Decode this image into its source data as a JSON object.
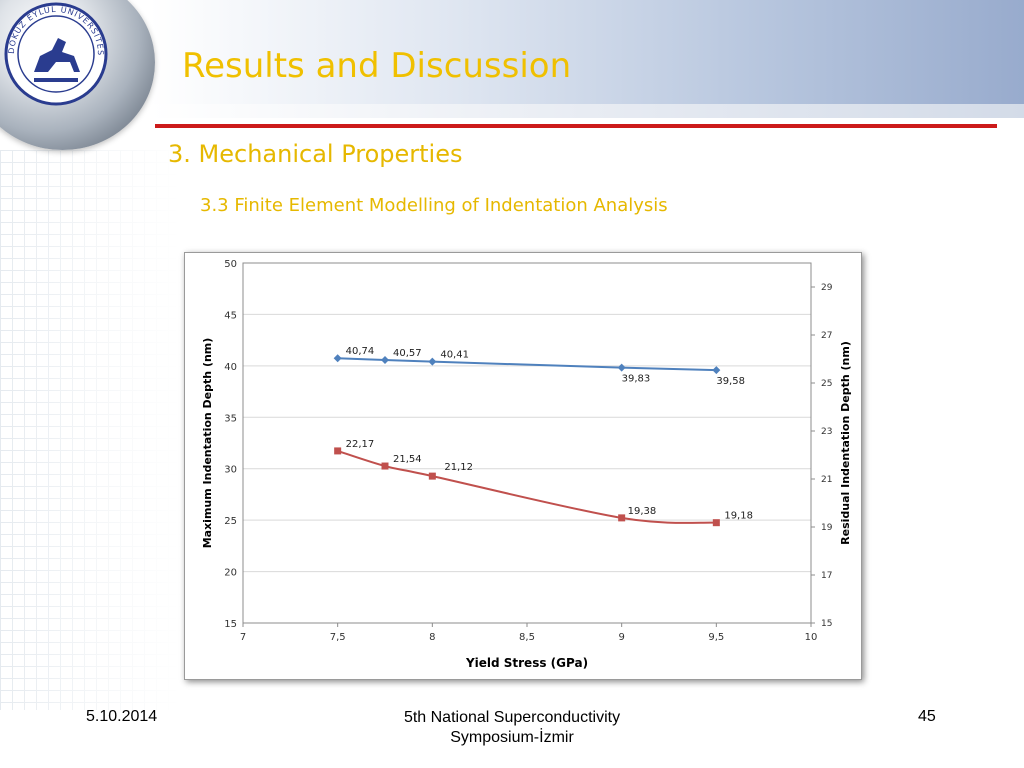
{
  "slide": {
    "title": "Results and Discussion",
    "subtitle1": "3. Mechanical Properties",
    "subtitle2": "3.3 Finite Element Modelling of Indentation Analysis",
    "footer_date": "5.10.2014",
    "footer_event_line1": "5th National Superconductivity",
    "footer_event_line2": "Symposium-İzmir",
    "footer_page": "45",
    "logo_text": "DOKUZ EYLÜL ÜNİVERSİTESİ",
    "title_color": "#f0c000",
    "rule_color": "#cc1a1a"
  },
  "chart_data": {
    "type": "line",
    "xlabel": "Yield Stress (GPa)",
    "ylabel": "Maximum Indentation Depth (nm)",
    "y2label": "Residual Indentation Depth (nm)",
    "xlim": [
      7,
      10
    ],
    "ylim": [
      15,
      50
    ],
    "y2lim": [
      15,
      30
    ],
    "x_ticks": [
      "7",
      "7,5",
      "8",
      "8,5",
      "9",
      "9,5",
      "10"
    ],
    "y_ticks": [
      "15",
      "20",
      "25",
      "30",
      "35",
      "40",
      "45",
      "50"
    ],
    "y2_ticks": [
      "15",
      "17",
      "19",
      "21",
      "23",
      "25",
      "27",
      "29"
    ],
    "grid": true,
    "series": [
      {
        "axis": "left",
        "color": "#4f81bd",
        "marker": "diamond",
        "x": [
          7.5,
          7.75,
          8,
          9,
          9.5
        ],
        "values": [
          40.74,
          40.57,
          40.41,
          39.83,
          39.58
        ],
        "labels": [
          "40,74",
          "40,57",
          "40,41",
          "39,83",
          "39,58"
        ]
      },
      {
        "axis": "right",
        "color": "#c0504d",
        "marker": "square",
        "x": [
          7.5,
          7.75,
          8,
          9,
          9.5
        ],
        "values": [
          22.17,
          21.54,
          21.12,
          19.38,
          19.18
        ],
        "labels": [
          "22,17",
          "21,54",
          "21,12",
          "19,38",
          "19,18"
        ]
      }
    ]
  }
}
